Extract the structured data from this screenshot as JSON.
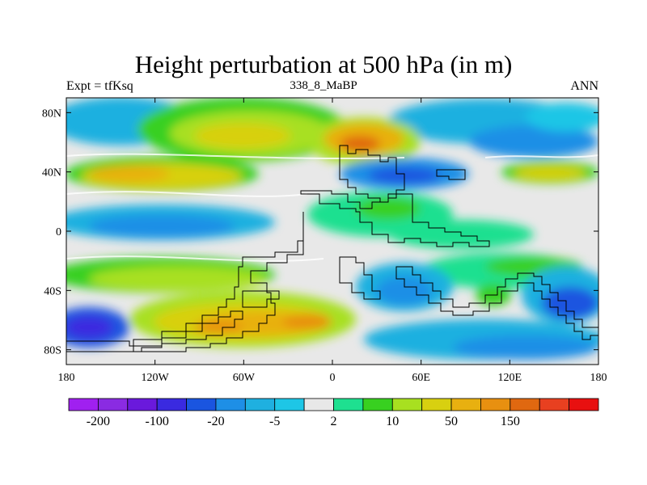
{
  "title": "Height perturbation at 500 hPa (in m)",
  "subtitle_left": "Expt = tfKsq",
  "subtitle_center": "338_8_MaBP",
  "subtitle_right": "ANN",
  "map": {
    "projection": "cylindrical-equidistant",
    "lon_range": [
      -180,
      180
    ],
    "lat_range": [
      -90,
      90
    ],
    "x_ticks": [
      {
        "value": -180,
        "label": "180"
      },
      {
        "value": -120,
        "label": "120W"
      },
      {
        "value": -60,
        "label": "60W"
      },
      {
        "value": 0,
        "label": "0"
      },
      {
        "value": 60,
        "label": "60E"
      },
      {
        "value": 120,
        "label": "120E"
      },
      {
        "value": 180,
        "label": "180"
      }
    ],
    "y_ticks": [
      {
        "value": 80,
        "label": "80N"
      },
      {
        "value": 40,
        "label": "40N"
      },
      {
        "value": 0,
        "label": "0"
      },
      {
        "value": -40,
        "label": "40S"
      },
      {
        "value": -80,
        "label": "80S"
      }
    ]
  },
  "colorbar": {
    "colors": [
      "#a020f0",
      "#8a2be2",
      "#6a19dc",
      "#3a2ae0",
      "#1a55e0",
      "#1e8fe6",
      "#1fb0e0",
      "#1ec6e6",
      "#e8e8e8",
      "#1ee090",
      "#38d020",
      "#a8e020",
      "#d8d010",
      "#e8b010",
      "#e89010",
      "#e06810",
      "#e84020",
      "#e81010"
    ],
    "labels": [
      {
        "after_box": 1,
        "text": "-200"
      },
      {
        "after_box": 3,
        "text": "-100"
      },
      {
        "after_box": 5,
        "text": "-20"
      },
      {
        "after_box": 7,
        "text": "-5"
      },
      {
        "after_box": 9,
        "text": "2"
      },
      {
        "after_box": 11,
        "text": "10"
      },
      {
        "after_box": 13,
        "text": "50"
      },
      {
        "after_box": 15,
        "text": "150"
      }
    ]
  }
}
